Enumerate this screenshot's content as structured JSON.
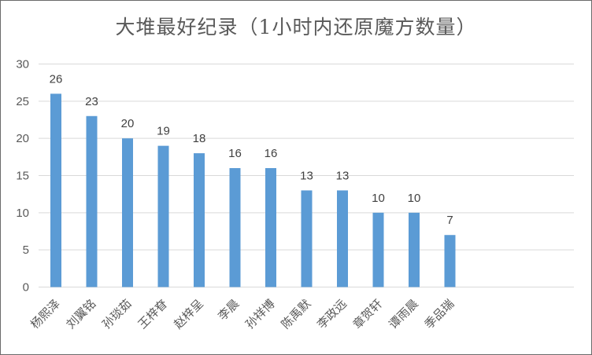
{
  "chart_data": {
    "type": "bar",
    "title": "大堆最好纪录（1小时内还原魔方数量）",
    "categories": [
      "杨熙泽",
      "刘翼铭",
      "孙琰茹",
      "王梓眘",
      "赵梓呈",
      "李晨",
      "孙祥博",
      "陈禹默",
      "李政远",
      "章贺轩",
      "谭雨晨",
      "季品瑞"
    ],
    "values": [
      26,
      23,
      20,
      19,
      18,
      16,
      16,
      13,
      13,
      10,
      10,
      7
    ],
    "yticks": [
      "0",
      "5",
      "10",
      "15",
      "20",
      "25",
      "30"
    ],
    "ylim": [
      0,
      30
    ],
    "grid": true,
    "bar_color": "#5b9bd5",
    "grid_color": "#d9d9d9"
  }
}
